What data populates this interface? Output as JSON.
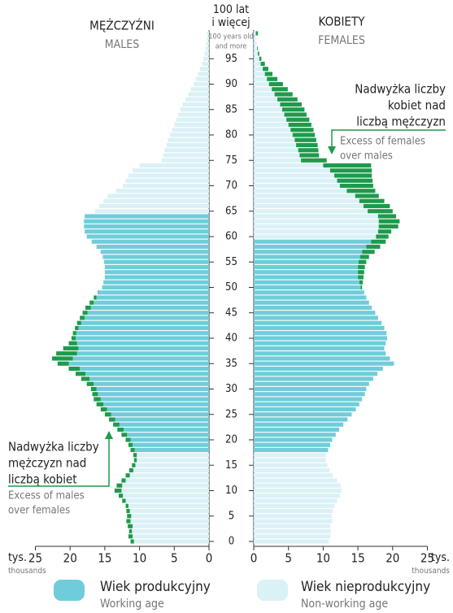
{
  "chart_data": {
    "type": "pyramid",
    "top_label": [
      "100 lat",
      "i więcej"
    ],
    "top_label_en": [
      "100 years old",
      "and more"
    ],
    "categories": [
      0,
      null,
      null,
      null,
      null,
      5,
      null,
      null,
      null,
      null,
      10,
      null,
      null,
      null,
      null,
      15,
      null,
      null,
      null,
      null,
      20,
      null,
      null,
      null,
      null,
      25,
      null,
      null,
      null,
      null,
      30,
      null,
      null,
      null,
      null,
      35,
      null,
      null,
      null,
      null,
      40,
      null,
      null,
      null,
      null,
      45,
      null,
      null,
      null,
      null,
      50,
      null,
      null,
      null,
      null,
      55,
      null,
      null,
      null,
      null,
      60,
      null,
      null,
      null,
      null,
      65,
      null,
      null,
      null,
      null,
      70,
      null,
      null,
      null,
      null,
      75,
      null,
      null,
      null,
      null,
      80,
      null,
      null,
      null,
      null,
      85,
      null,
      null,
      null,
      null,
      90,
      null,
      null,
      null,
      null,
      95,
      null,
      null,
      null,
      null,
      null
    ],
    "xlim": [
      0,
      25
    ],
    "xticks": [
      0,
      5,
      10,
      15,
      20,
      25
    ],
    "x_unit": "tys.",
    "x_unit_en": "thousands",
    "excess_color": "#1e9a4c",
    "series": [
      {
        "name": "MĘŻCZYŹNI",
        "name_en": "MALES",
        "side": "left",
        "working_age": [
          18,
          64
        ],
        "values": [
          11.3,
          11.6,
          11.5,
          11.7,
          11.9,
          11.8,
          11.9,
          12.0,
          12.5,
          13.0,
          13.6,
          13.3,
          12.6,
          12.0,
          11.5,
          11.1,
          10.8,
          10.9,
          11.3,
          11.6,
          12.0,
          12.6,
          13.2,
          13.8,
          14.4,
          15.0,
          15.6,
          16.2,
          16.6,
          16.8,
          17.0,
          17.6,
          18.4,
          19.2,
          20.2,
          21.8,
          22.6,
          22.0,
          21.0,
          20.2,
          19.8,
          19.6,
          19.3,
          19.0,
          18.6,
          18.2,
          17.8,
          17.2,
          16.6,
          16.0,
          15.4,
          15.2,
          15.0,
          15.0,
          15.0,
          15.1,
          15.3,
          15.6,
          16.2,
          16.9,
          17.6,
          17.9,
          18.0,
          18.0,
          17.9,
          16.4,
          15.8,
          15.2,
          14.6,
          13.4,
          12.4,
          12.0,
          11.6,
          11.0,
          10.0,
          6.8,
          6.6,
          6.4,
          6.1,
          5.9,
          5.6,
          5.3,
          5.0,
          4.7,
          4.4,
          4.1,
          3.8,
          3.4,
          3.0,
          2.6,
          2.2,
          1.9,
          1.6,
          1.3,
          1.0,
          0.8,
          0.6,
          0.5,
          0.4,
          0.3,
          0.3
        ]
      },
      {
        "name": "KOBIETY",
        "name_en": "FEMALES",
        "side": "right",
        "working_age": [
          18,
          59
        ],
        "values": [
          10.8,
          11.0,
          11.1,
          11.0,
          11.3,
          11.2,
          11.4,
          11.6,
          12.0,
          12.4,
          12.6,
          12.5,
          12.0,
          11.4,
          10.9,
          10.6,
          10.4,
          10.4,
          10.7,
          11.0,
          11.3,
          11.8,
          12.3,
          12.9,
          13.5,
          14.1,
          14.7,
          15.2,
          15.6,
          16.0,
          16.2,
          16.6,
          17.2,
          17.8,
          18.6,
          20.2,
          19.6,
          19.0,
          18.8,
          19.0,
          19.2,
          19.1,
          18.8,
          18.4,
          17.9,
          17.5,
          17.0,
          16.6,
          16.2,
          15.9,
          15.6,
          15.7,
          15.8,
          15.9,
          16.0,
          16.2,
          16.6,
          17.4,
          18.2,
          19.0,
          19.4,
          19.8,
          20.8,
          21.0,
          20.5,
          20.0,
          19.6,
          18.8,
          18.0,
          17.5,
          17.2,
          17.1,
          17.0,
          17.0,
          16.9,
          10.5,
          9.4,
          9.3,
          9.2,
          9.0,
          8.8,
          8.6,
          8.3,
          8.0,
          7.6,
          7.3,
          6.9,
          6.3,
          5.6,
          4.9,
          4.2,
          3.4,
          2.7,
          2.1,
          1.6,
          1.1,
          0.8,
          0.6,
          0.4,
          0.3,
          0.6
        ]
      }
    ],
    "legend": [
      {
        "name": "Wiek produkcyjny",
        "name_en": "Working age",
        "color": "#6fcdd9"
      },
      {
        "name": "Wiek nieprodukcyjny",
        "name_en": "Non-working age",
        "color": "#daf1f6"
      }
    ],
    "annotations": [
      {
        "text": [
          "Nadwyżka liczby",
          "kobiet nad",
          "liczbą mężczyzn"
        ],
        "text_en": [
          "Excess of females",
          "over males"
        ]
      },
      {
        "text": [
          "Nadwyżka liczby",
          "mężczyzn nad",
          "liczbą kobiet"
        ],
        "text_en": [
          "Excess of males",
          "over females"
        ]
      }
    ]
  }
}
